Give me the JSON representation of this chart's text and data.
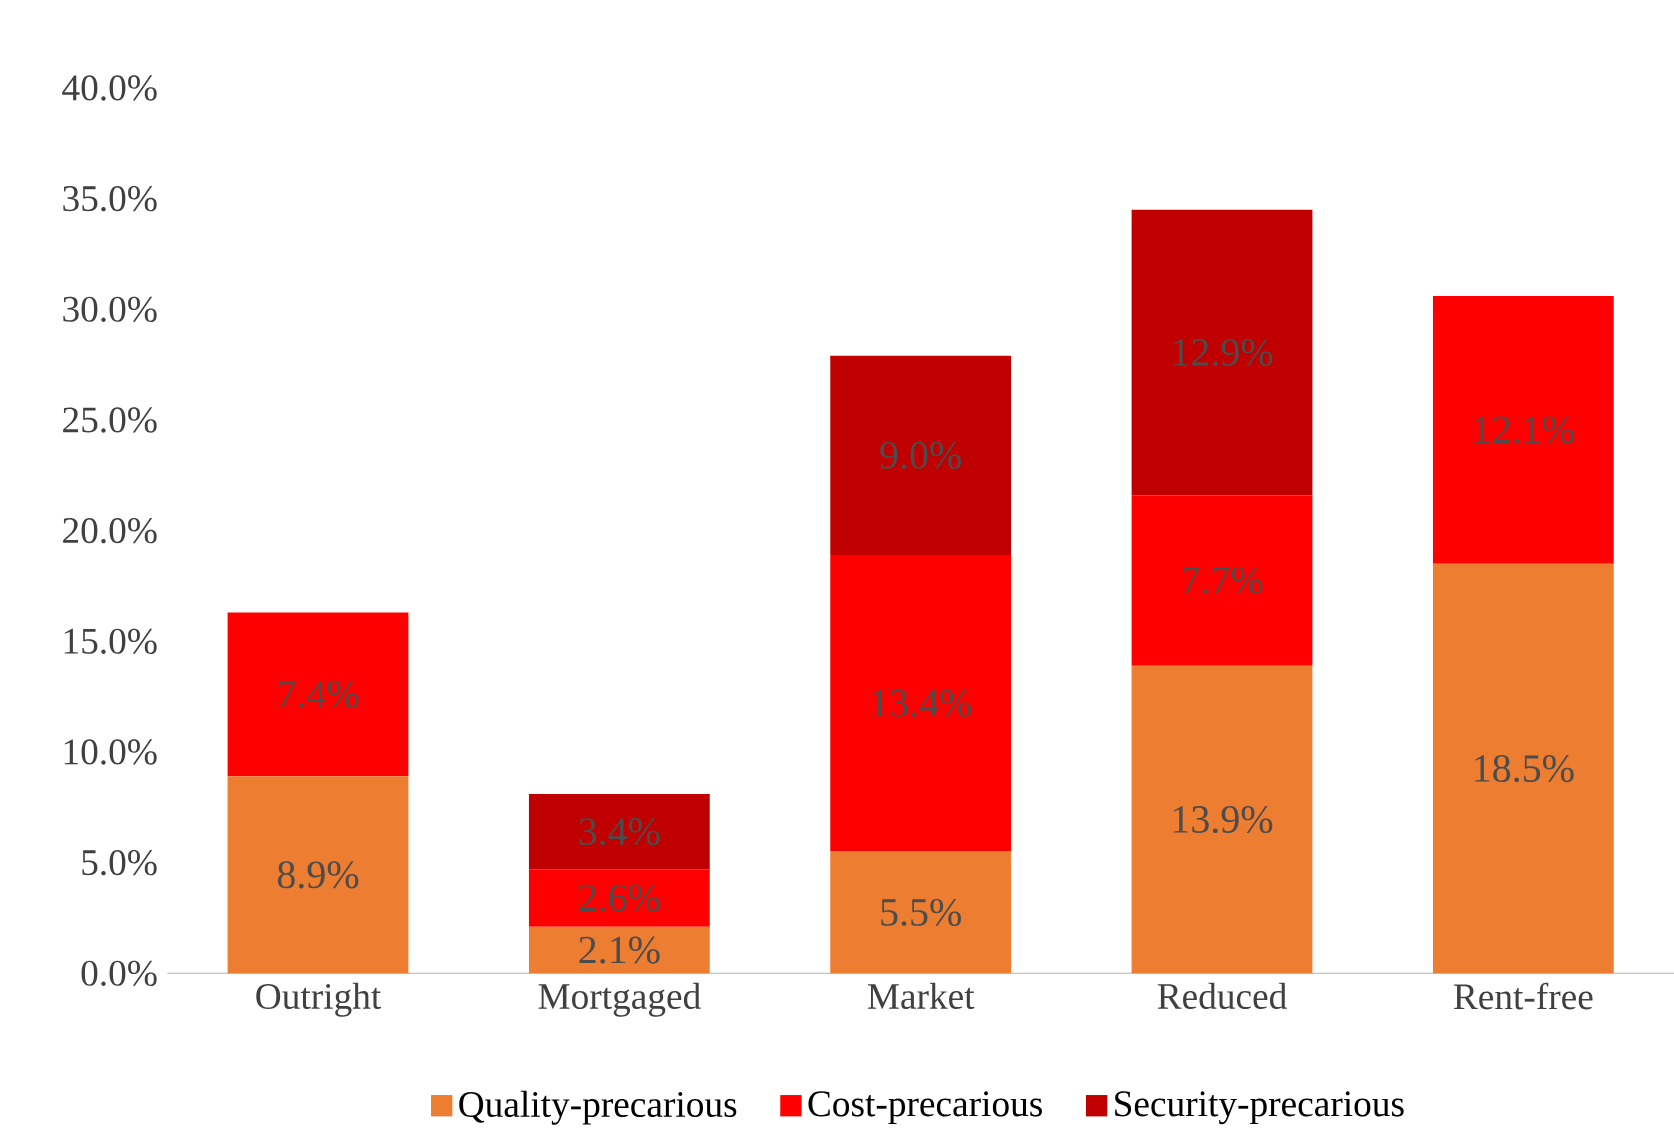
{
  "chart_data": {
    "type": "bar",
    "stacked": true,
    "categories": [
      "Outright",
      "Mortgaged",
      "Market",
      "Reduced",
      "Rent-free"
    ],
    "series": [
      {
        "name": "Quality-precarious",
        "color": "#ed7d31",
        "values": [
          8.9,
          2.1,
          5.5,
          13.9,
          18.5
        ],
        "value_labels": [
          "8.9%",
          "2.1%",
          "5.5%",
          "13.9%",
          "18.5%"
        ]
      },
      {
        "name": "Cost-precarious",
        "color": "#ff0000",
        "values": [
          7.4,
          2.6,
          13.4,
          7.7,
          12.1
        ],
        "value_labels": [
          "7.4%",
          "2.6%",
          "13.4%",
          "7.7%",
          "12.1%"
        ]
      },
      {
        "name": "Security-precarious",
        "color": "#c00000",
        "values": [
          null,
          3.4,
          9.0,
          12.9,
          null
        ],
        "value_labels": [
          null,
          "3.4%",
          "9.0%",
          "12.9%",
          null
        ]
      }
    ],
    "ylim": [
      0,
      40
    ],
    "yticks": [
      {
        "value": 0,
        "label": "0.0%"
      },
      {
        "value": 5,
        "label": "5.0%"
      },
      {
        "value": 10,
        "label": "10.0%"
      },
      {
        "value": 15,
        "label": "15.0%"
      },
      {
        "value": 20,
        "label": "20.0%"
      },
      {
        "value": 25,
        "label": "25.0%"
      },
      {
        "value": 30,
        "label": "30.0%"
      },
      {
        "value": 35,
        "label": "35.0%"
      },
      {
        "value": 40,
        "label": "40.0%"
      }
    ],
    "legend": "bottom"
  }
}
